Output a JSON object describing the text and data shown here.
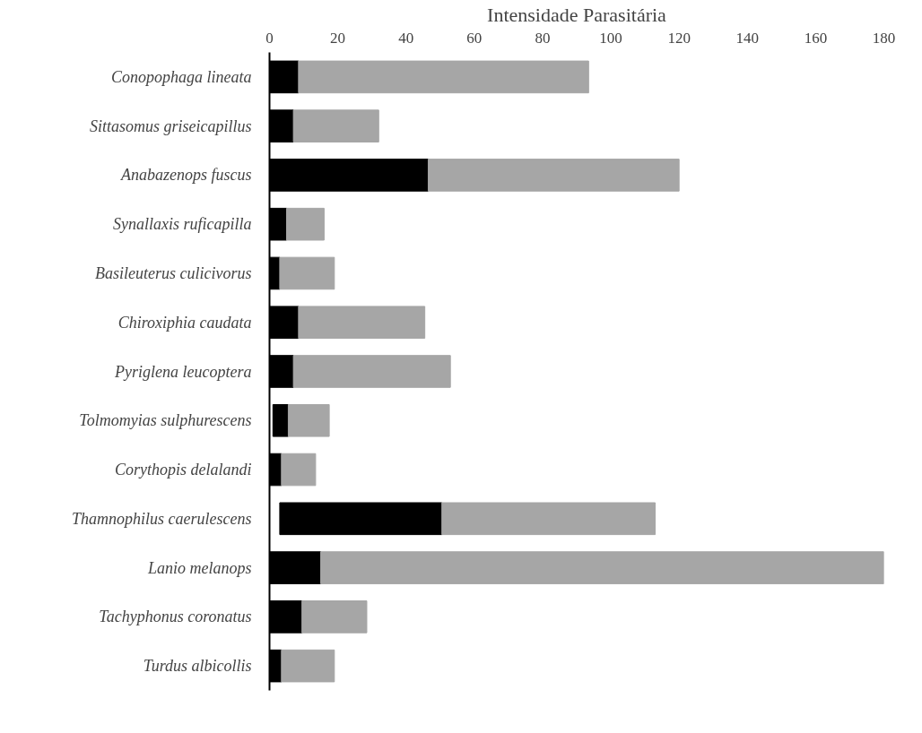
{
  "chart_data": {
    "type": "bar",
    "orientation": "horizontal",
    "xlabel": "Intensidade Parasitária",
    "categories": [
      "Conopophaga lineata",
      "Sittasomus griseicapillus",
      "Anabazenops fuscus",
      "Synallaxis ruficapilla",
      "Basileuterus culicivorus",
      "Chiroxiphia caudata",
      "Pyriglena leucoptera",
      "Tolmomyias sulphurescens",
      "Corythopis delalandi",
      "Thamnophilus caerulescens",
      "Lanio melanops",
      "Tachyphonus coronatus",
      "Turdus albicollis"
    ],
    "series": [
      {
        "color": "#000000",
        "base": [
          0,
          0,
          0,
          0,
          0,
          0,
          0,
          1,
          0,
          3,
          0,
          0,
          0
        ],
        "values": [
          8.5,
          7,
          46.5,
          5,
          3,
          8.5,
          7,
          4.5,
          3.5,
          47.5,
          15,
          9.5,
          3.5
        ]
      },
      {
        "color": "#a6a6a6",
        "base": [
          8.5,
          7,
          46.5,
          5,
          3,
          8.5,
          7,
          5.5,
          3.5,
          50.5,
          15,
          9.5,
          3.5
        ],
        "values": [
          85,
          25,
          73.5,
          11,
          16,
          37,
          46,
          12,
          10,
          62.5,
          165,
          19,
          15.5
        ]
      }
    ],
    "xlim": [
      0,
      180
    ],
    "xticks": [
      0,
      20,
      40,
      60,
      80,
      100,
      120,
      140,
      160,
      180
    ],
    "grid": false
  }
}
